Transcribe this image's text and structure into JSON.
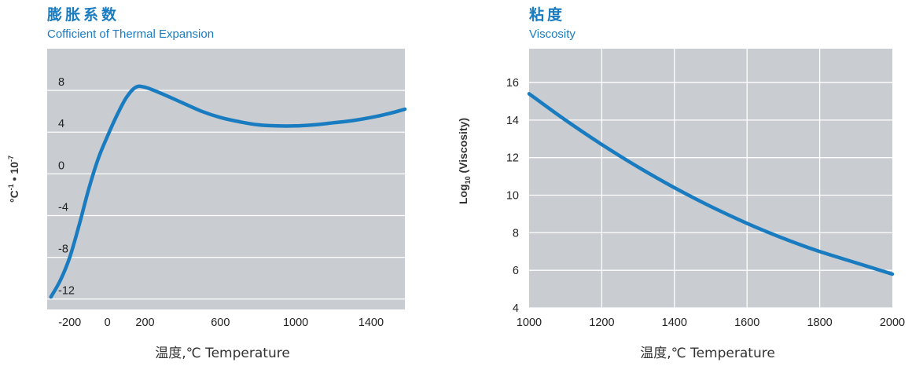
{
  "chart_data": [
    {
      "type": "line",
      "title": "膨胀系数",
      "subtitle": "Cofficient of Thermal Expansion",
      "xlabel": "温度,℃ Temperature",
      "ylabel_parts": [
        "°C",
        "-1",
        " • 10",
        "-7"
      ],
      "ylabel": "°C-1 • 10-7",
      "xlim": [
        -320,
        1580
      ],
      "ylim": [
        -13,
        12
      ],
      "xticks": [
        -200,
        0,
        200,
        600,
        1000,
        1400
      ],
      "xtick_labels": [
        "-200",
        "0",
        "200",
        "600",
        "1000",
        "1400"
      ],
      "yticks": [
        8,
        4,
        0,
        -4,
        -8,
        -12
      ],
      "ytick_labels": [
        "8",
        "4",
        "0",
        "-4",
        "-8",
        "-12"
      ],
      "grid": {
        "horizontal": true,
        "vertical": false
      },
      "series": [
        {
          "color": "#1a7cc0",
          "x": [
            -300,
            -250,
            -200,
            -150,
            -100,
            -50,
            0,
            50,
            100,
            150,
            200,
            300,
            400,
            500,
            600,
            700,
            800,
            900,
            1000,
            1100,
            1200,
            1300,
            1400,
            1500,
            1580
          ],
          "y": [
            -11.8,
            -10.2,
            -8.0,
            -4.9,
            -1.5,
            1.4,
            3.6,
            5.6,
            7.3,
            8.3,
            8.3,
            7.6,
            6.8,
            6.0,
            5.4,
            5.0,
            4.7,
            4.6,
            4.6,
            4.7,
            4.9,
            5.1,
            5.4,
            5.8,
            6.2
          ]
        }
      ]
    },
    {
      "type": "line",
      "title": "粘度",
      "subtitle": "Viscosity",
      "xlabel": "温度,℃ Temperature",
      "ylabel_parts": [
        "Log",
        "10",
        " (Viscosity)"
      ],
      "ylabel": "Log10 (Viscosity)",
      "xlim": [
        1000,
        2000
      ],
      "ylim": [
        4,
        17.8
      ],
      "xticks": [
        1000,
        1200,
        1400,
        1600,
        1800,
        2000
      ],
      "xtick_labels": [
        "1000",
        "1200",
        "1400",
        "1600",
        "1800",
        "2000"
      ],
      "yticks": [
        16,
        14,
        12,
        10,
        8,
        6,
        4
      ],
      "ytick_labels": [
        "16",
        "14",
        "12",
        "10",
        "8",
        "6",
        "4"
      ],
      "grid": {
        "horizontal": true,
        "vertical": true
      },
      "series": [
        {
          "color": "#1a7cc0",
          "x": [
            1000,
            1100,
            1200,
            1300,
            1400,
            1500,
            1600,
            1700,
            1800,
            1900,
            2000
          ],
          "y": [
            15.4,
            14.0,
            12.7,
            11.5,
            10.4,
            9.4,
            8.5,
            7.7,
            7.0,
            6.4,
            5.8
          ]
        }
      ]
    }
  ]
}
